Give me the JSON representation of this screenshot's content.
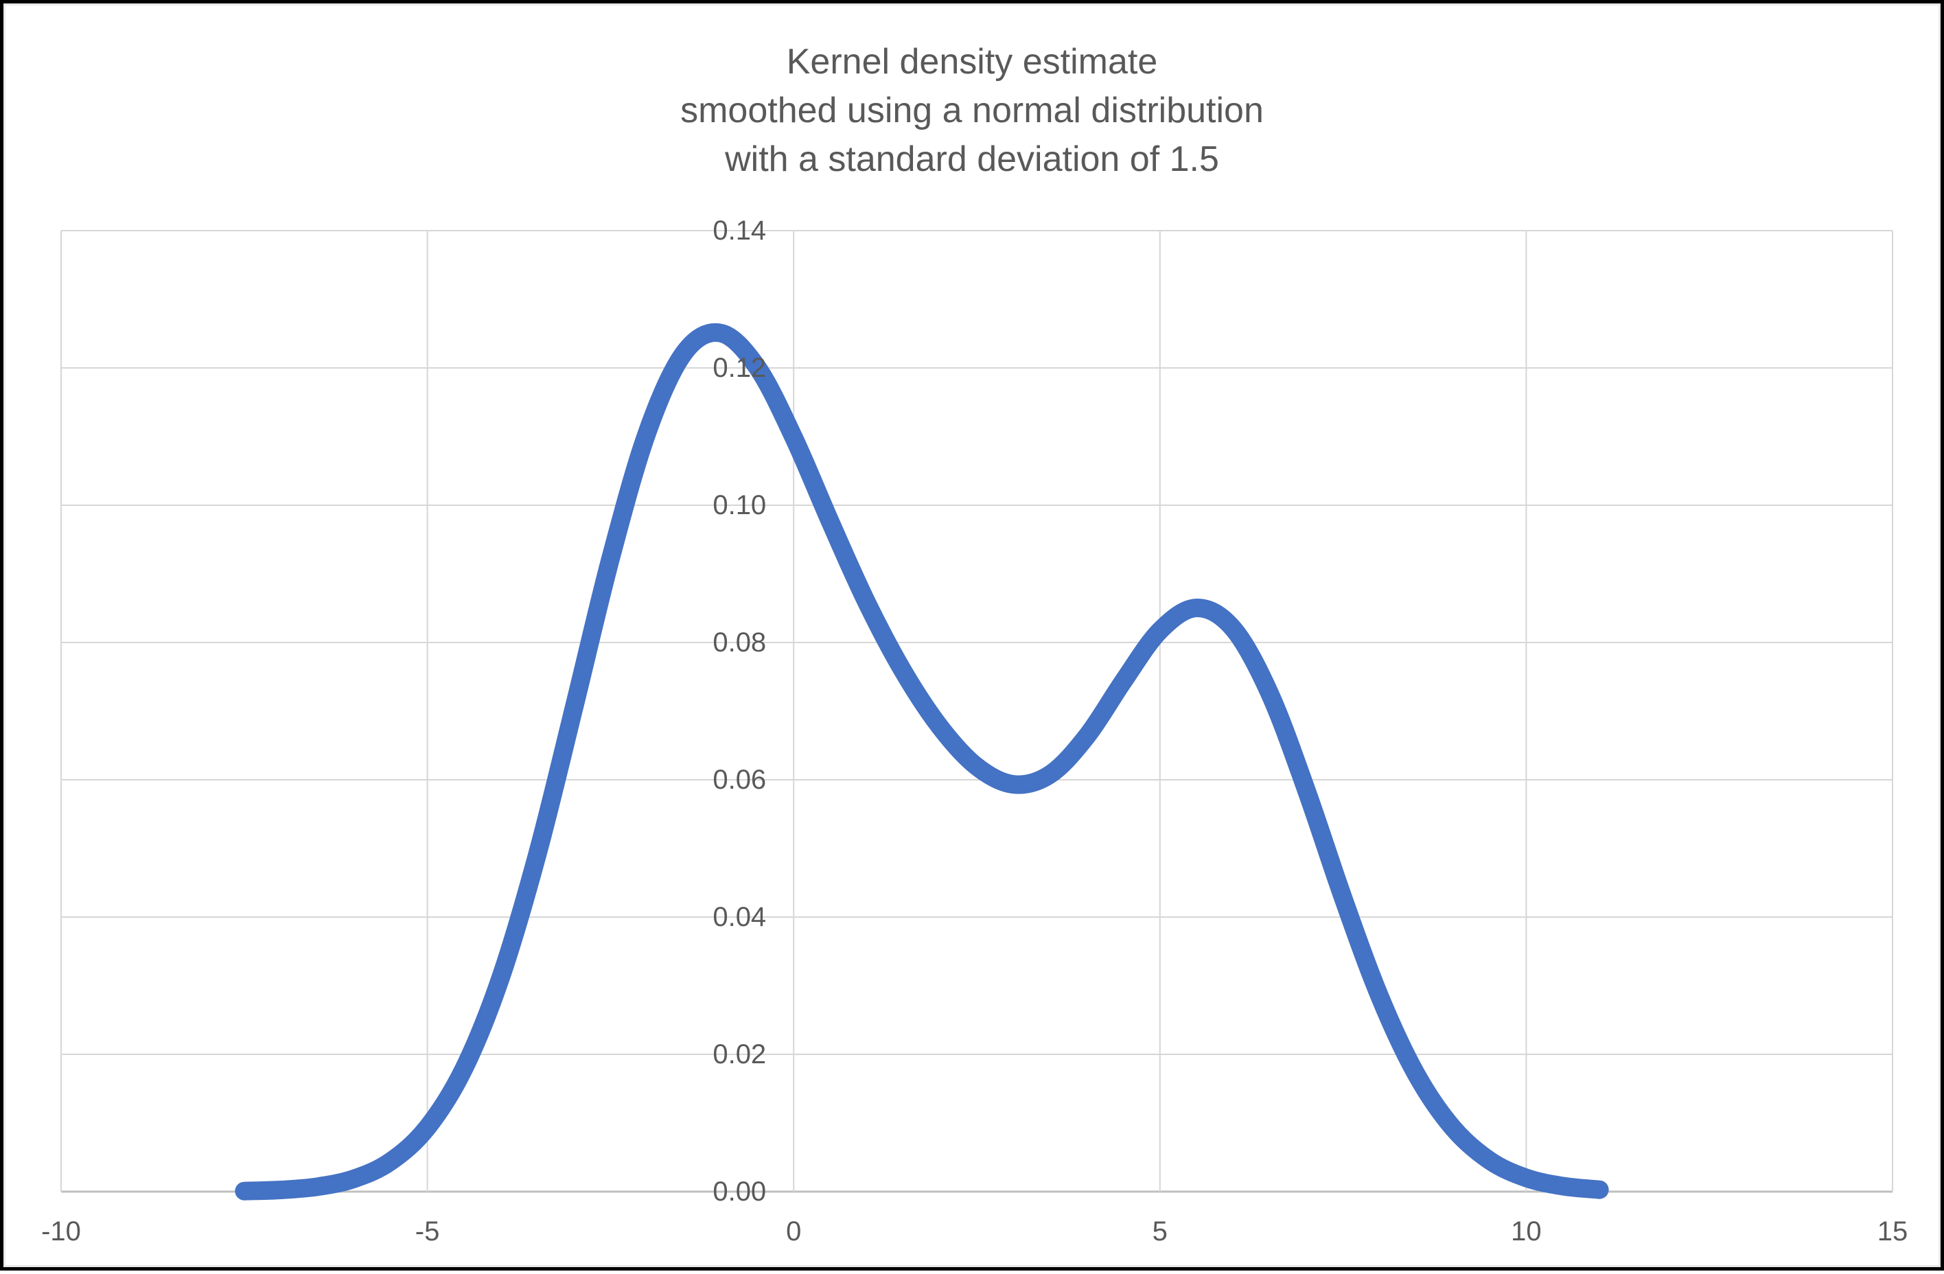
{
  "title": {
    "lines": [
      "Kernel density estimate",
      "smoothed using a normal distribution",
      "with a standard deviation of 1.5"
    ]
  },
  "chart_data": {
    "type": "line",
    "title": "Kernel density estimate smoothed using a normal distribution with a standard deviation of 1.5",
    "xlabel": "",
    "ylabel": "",
    "xlim": [
      -10,
      15
    ],
    "ylim": [
      0,
      0.14
    ],
    "grid": true,
    "legend": "none",
    "x_ticks": [
      -10,
      -5,
      0,
      5,
      10,
      15
    ],
    "x_tick_labels": [
      "-10",
      "-5",
      "0",
      "5",
      "10",
      "15"
    ],
    "y_ticks": [
      0,
      0.02,
      0.04,
      0.06,
      0.08,
      0.1,
      0.12,
      0.14
    ],
    "y_tick_labels": [
      "0.00",
      "0.02",
      "0.04",
      "0.06",
      "0.08",
      "0.10",
      "0.12",
      "0.14"
    ],
    "series": [
      {
        "name": "kernel-density-estimate",
        "x": [
          -7.5,
          -7.0,
          -6.5,
          -6.0,
          -5.5,
          -5.0,
          -4.5,
          -4.0,
          -3.5,
          -3.0,
          -2.5,
          -2.0,
          -1.5,
          -1.0,
          -0.5,
          0.0,
          0.5,
          1.0,
          1.5,
          2.0,
          2.5,
          3.0,
          3.5,
          4.0,
          4.5,
          5.0,
          5.5,
          6.0,
          6.5,
          7.0,
          7.5,
          8.0,
          8.5,
          9.0,
          9.5,
          10.0,
          10.5,
          11.0
        ],
        "y": [
          8e-05,
          0.00025,
          0.00072,
          0.00188,
          0.00441,
          0.00935,
          0.01794,
          0.03115,
          0.0491,
          0.07042,
          0.0922,
          0.11059,
          0.12213,
          0.12509,
          0.12015,
          0.10988,
          0.09757,
          0.08578,
          0.07572,
          0.06767,
          0.06193,
          0.05933,
          0.06078,
          0.06633,
          0.07435,
          0.08173,
          0.08504,
          0.08202,
          0.07252,
          0.05846,
          0.04281,
          0.02842,
          0.01708,
          0.00927,
          0.00454,
          0.002,
          0.0008,
          0.00028
        ]
      }
    ],
    "annotations": {
      "left_peak": {
        "x": -1.0,
        "y": 0.125
      },
      "valley": {
        "x": 3.0,
        "y": 0.059
      },
      "right_peak": {
        "x": 5.5,
        "y": 0.085
      }
    }
  },
  "colors": {
    "line": "#4472C4",
    "gridline": "#D6D6D6",
    "axis_line": "#BFBFBF",
    "text": "#595959",
    "background": "#FFFFFF",
    "frame": "#000000"
  }
}
